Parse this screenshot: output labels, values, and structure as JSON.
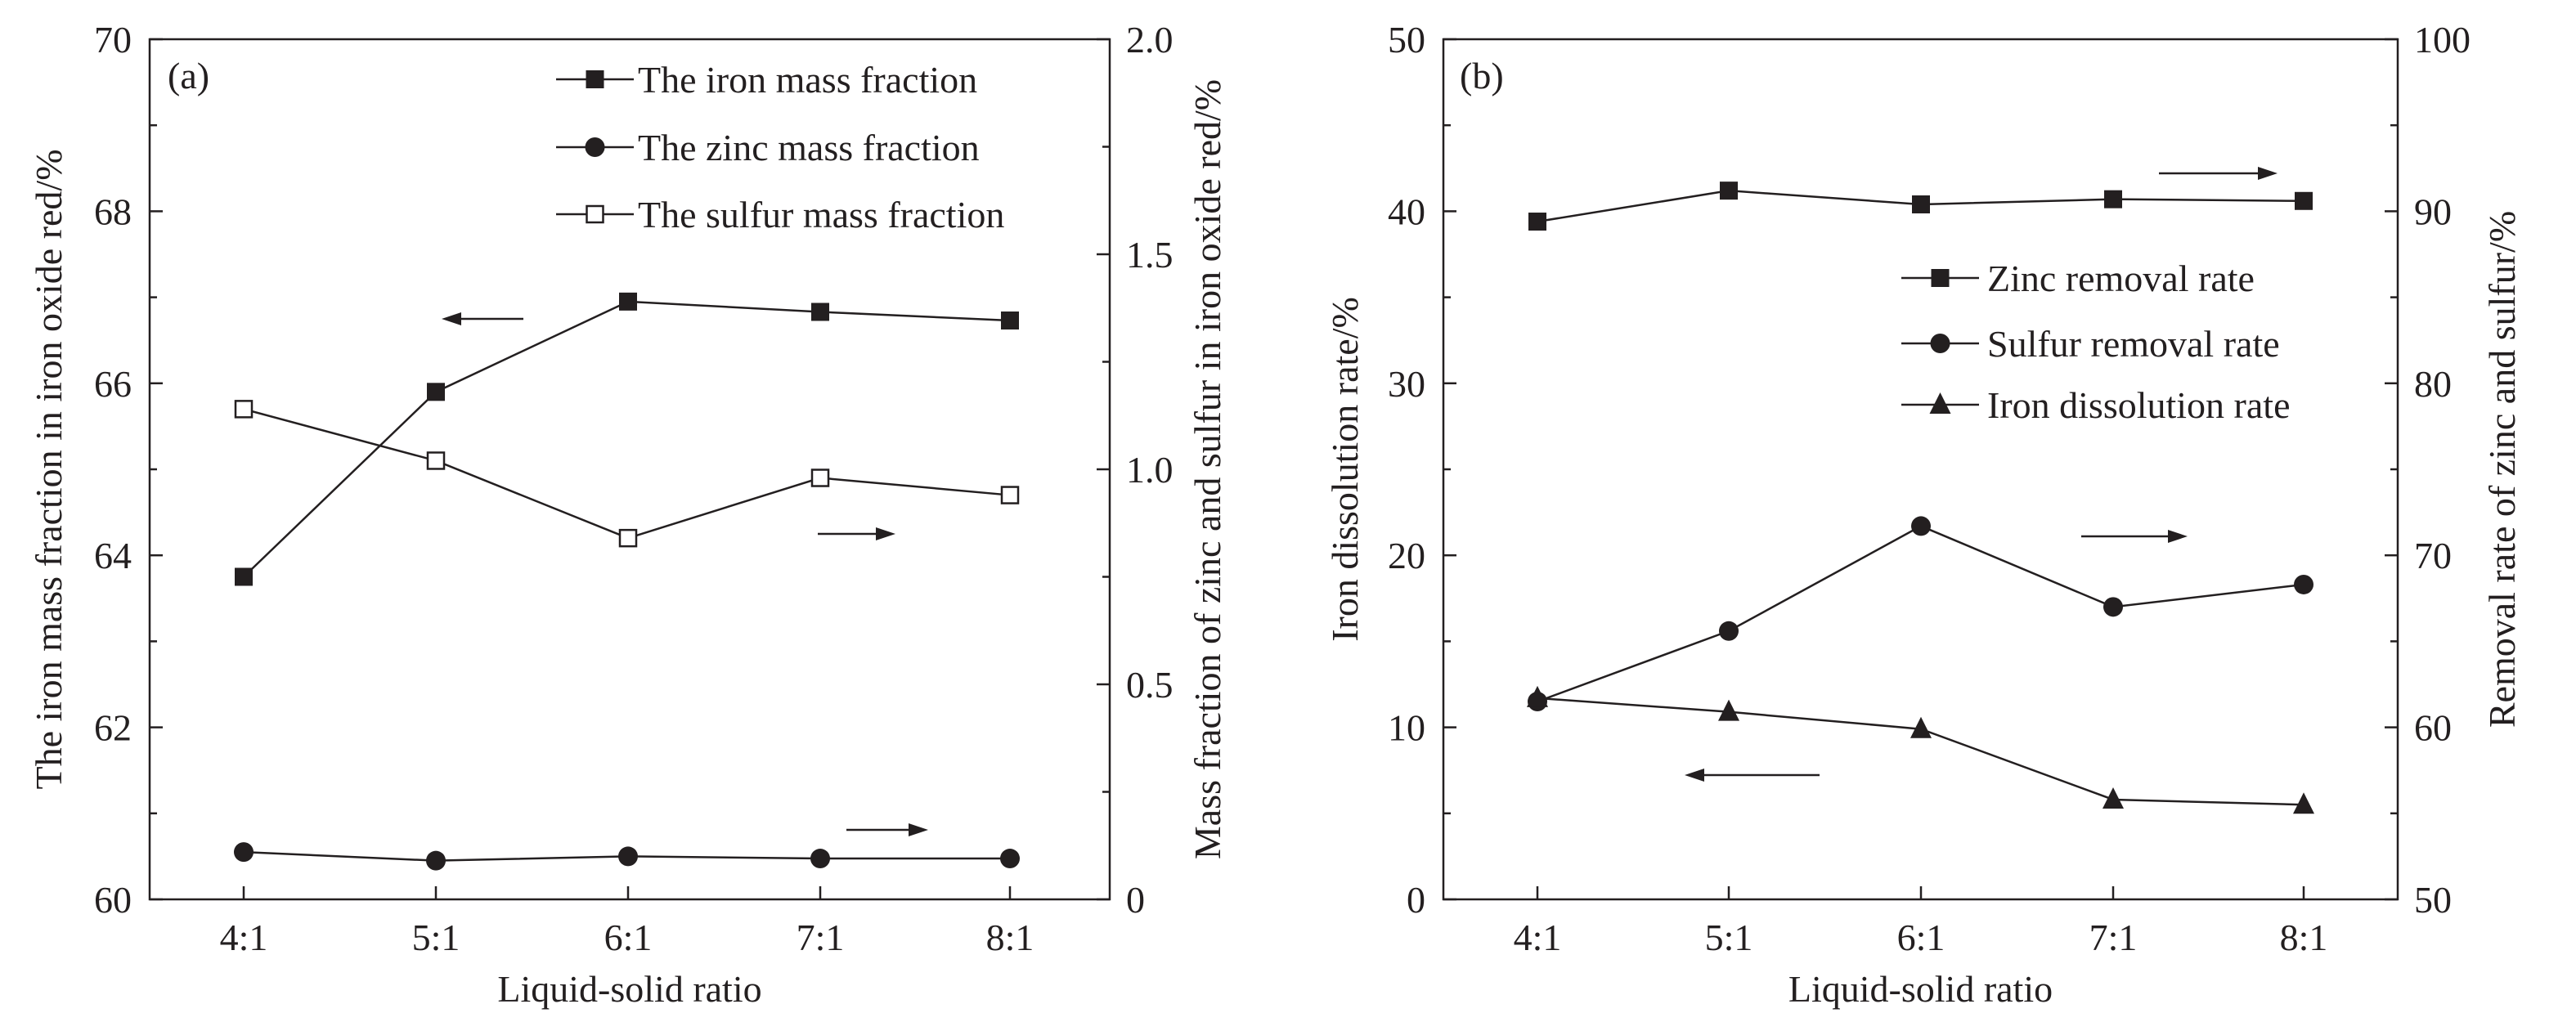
{
  "chart_data": [
    {
      "panel_label": "(a)",
      "type": "line",
      "xlabel": "Liquid-solid ratio",
      "ylabel": "The iron mass fraction in iron oxide red/%",
      "y2label": "Mass fraction of zinc and sulfur in iron oxide red/%",
      "categories": [
        "4:1",
        "5:1",
        "6:1",
        "7:1",
        "8:1"
      ],
      "ylim": [
        60,
        70
      ],
      "y2lim": [
        0,
        2.0
      ],
      "yticks": [
        "60",
        "62",
        "64",
        "66",
        "68",
        "70"
      ],
      "y2ticks": [
        "0",
        "0.5",
        "1.0",
        "1.5",
        "2.0"
      ],
      "legend_position": "top-right",
      "series": [
        {
          "name": "The iron mass fraction",
          "axis": "left",
          "marker": "square-filled",
          "values": [
            63.75,
            65.9,
            66.95,
            66.83,
            66.73
          ]
        },
        {
          "name": "The zinc mass fraction",
          "axis": "right",
          "marker": "circle-filled",
          "values": [
            0.11,
            0.09,
            0.1,
            0.095,
            0.095
          ]
        },
        {
          "name": "The sulfur mass fraction",
          "axis": "right",
          "marker": "square-open",
          "values": [
            1.14,
            1.02,
            0.84,
            0.98,
            0.94
          ]
        }
      ],
      "arrows": [
        {
          "direction": "left",
          "series": "The iron mass fraction"
        },
        {
          "direction": "right",
          "series": "The sulfur mass fraction"
        },
        {
          "direction": "right",
          "series": "The zinc mass fraction"
        }
      ]
    },
    {
      "panel_label": "(b)",
      "type": "line",
      "xlabel": "Liquid-solid ratio",
      "ylabel": "Iron dissolution rate/%",
      "y2label": "Removal rate of zinc and sulfur/%",
      "categories": [
        "4:1",
        "5:1",
        "6:1",
        "7:1",
        "8:1"
      ],
      "ylim": [
        0,
        50
      ],
      "y2lim": [
        50,
        100
      ],
      "yticks": [
        "0",
        "10",
        "20",
        "30",
        "40",
        "50"
      ],
      "y2ticks": [
        "50",
        "60",
        "70",
        "80",
        "90",
        "100"
      ],
      "legend_position": "center-right",
      "series": [
        {
          "name": "Zinc removal rate",
          "axis": "right",
          "marker": "square-filled",
          "values": [
            89.4,
            91.2,
            90.4,
            90.7,
            90.6
          ]
        },
        {
          "name": "Sulfur removal rate",
          "axis": "right",
          "marker": "circle-filled",
          "values": [
            61.5,
            65.6,
            71.7,
            67.0,
            68.3
          ]
        },
        {
          "name": "Iron dissolution rate",
          "axis": "left",
          "marker": "triangle-filled",
          "values": [
            11.7,
            10.9,
            9.9,
            5.8,
            5.5
          ]
        }
      ],
      "arrows": [
        {
          "direction": "right",
          "series": "Zinc removal rate"
        },
        {
          "direction": "right",
          "series": "Sulfur removal rate"
        },
        {
          "direction": "left",
          "series": "Iron dissolution rate"
        }
      ]
    }
  ]
}
